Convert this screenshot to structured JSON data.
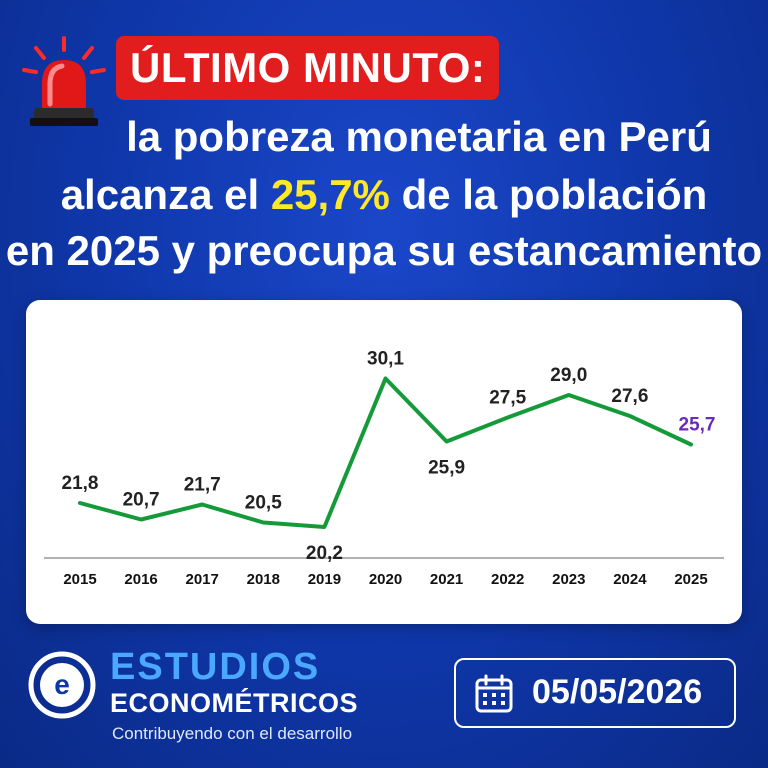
{
  "header": {
    "tag": "ÚLTIMO MINUTO:",
    "line1": "la pobreza monetaria en Perú",
    "line2_before": "alcanza el ",
    "line2_highlight": "25,7%",
    "line2_after": " de la población",
    "line3": "en 2025 y preocupa su estancamiento"
  },
  "colors": {
    "line": "#159a3a",
    "label": "#222222",
    "last_label": "#6a2bb8",
    "highlight": "#ffe82a",
    "tag_bg": "#e11d1d"
  },
  "chart_data": {
    "type": "line",
    "title": "",
    "xlabel": "",
    "ylabel": "",
    "ylim": [
      18,
      34
    ],
    "grid": false,
    "x": [
      "2015",
      "2016",
      "2017",
      "2018",
      "2019",
      "2020",
      "2021",
      "2022",
      "2023",
      "2024",
      "2025"
    ],
    "series": [
      {
        "values": [
          21.8,
          20.7,
          21.7,
          20.5,
          20.2,
          30.1,
          25.9,
          27.5,
          29.0,
          27.6,
          25.7
        ],
        "labels": [
          "21,8",
          "20,7",
          "21,7",
          "20,5",
          "20,2",
          "30,1",
          "25,9",
          "27,5",
          "29,0",
          "27,6",
          "25,7"
        ],
        "label_positions": [
          "above",
          "above",
          "above",
          "above",
          "below",
          "above",
          "below",
          "above",
          "above",
          "above",
          "above"
        ]
      }
    ]
  },
  "brand": {
    "name_line1": "ESTUDIOS",
    "name_line2": "ECONOMÉTRICOS",
    "tagline": "Contribuyendo con el desarrollo",
    "logo_icon": "e-circle-logo"
  },
  "date": {
    "icon": "calendar-icon",
    "value": "05/05/2026"
  }
}
